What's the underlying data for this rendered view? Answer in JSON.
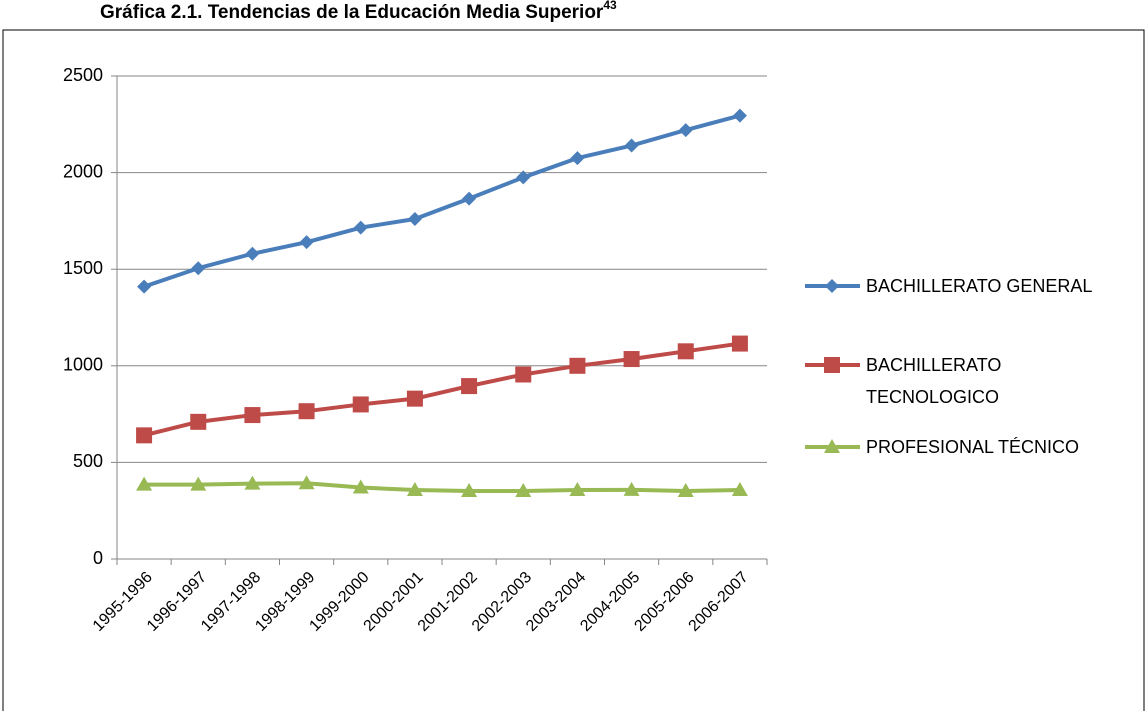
{
  "chart_data": {
    "type": "line",
    "title": "Gráfica 2.1. Tendencias de la Educación Media Superior",
    "title_note": "43",
    "categories": [
      "1995-1996",
      "1996-1997",
      "1997-1998",
      "1998-1999",
      "1999-2000",
      "2000-2001",
      "2001-2002",
      "2002-2003",
      "2003-2004",
      "2004-2005",
      "2005-2006",
      "2006-2007"
    ],
    "series": [
      {
        "name": "BACHILLERATO GENERAL",
        "color": "#4a7ebb",
        "marker": "diamond",
        "values": [
          1410,
          1505,
          1580,
          1640,
          1715,
          1760,
          1865,
          1975,
          2075,
          2140,
          2220,
          2295
        ]
      },
      {
        "name": "BACHILLERATO TECNOLOGICO",
        "color": "#be4b48",
        "marker": "square",
        "values": [
          640,
          710,
          745,
          765,
          800,
          830,
          895,
          955,
          1000,
          1035,
          1075,
          1115
        ]
      },
      {
        "name": "PROFESIONAL TÉCNICO",
        "color": "#98b954",
        "marker": "triangle",
        "values": [
          385,
          385,
          390,
          392,
          370,
          357,
          352,
          352,
          357,
          358,
          352,
          357
        ]
      }
    ],
    "ylim": [
      0,
      2500
    ],
    "yticks": [
      0,
      500,
      1000,
      1500,
      2000,
      2500
    ],
    "grid": true,
    "legend": "right"
  }
}
